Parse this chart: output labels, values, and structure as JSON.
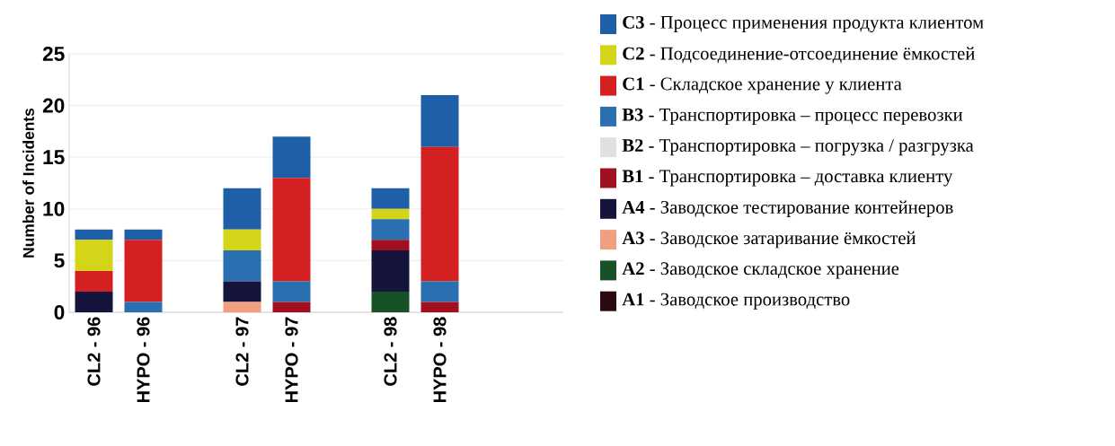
{
  "chart_data": {
    "type": "bar",
    "stacked": true,
    "ylabel": "Number of Incidents",
    "categories": [
      "CL2 - 96",
      "HYPO - 96",
      null,
      "CL2 - 97",
      "HYPO - 97",
      null,
      "CL2 - 98",
      "HYPO - 98",
      null,
      null
    ],
    "ylim": [
      0,
      25
    ],
    "yticks": [
      0,
      5,
      10,
      15,
      20,
      25
    ],
    "grid": "y",
    "legend": "right",
    "series": [
      {
        "name": "**A1** - Заводское производство",
        "color": "#2a0a10",
        "values": [
          0,
          0,
          null,
          0,
          0,
          null,
          0,
          0,
          null,
          null
        ]
      },
      {
        "name": "**A2** - Заводское складское хранение",
        "color": "#185028",
        "values": [
          0,
          0,
          null,
          0,
          0,
          null,
          2,
          0,
          null,
          null
        ]
      },
      {
        "name": "**A3** - Заводское затаривание ёмкостей",
        "color": "#f0a080",
        "values": [
          0,
          0,
          null,
          1,
          0,
          null,
          0,
          0,
          null,
          null
        ]
      },
      {
        "name": "**A4** - Заводское тестирование контейнеров",
        "color": "#14143c",
        "values": [
          2,
          0,
          null,
          2,
          0,
          null,
          4,
          0,
          null,
          null
        ]
      },
      {
        "name": "**B1** - Транспортировка – доставка клиенту",
        "color": "#a01020",
        "values": [
          0,
          0,
          null,
          0,
          1,
          null,
          1,
          1,
          null,
          null
        ]
      },
      {
        "name": "**B2** - Транспортировка – погрузка / разгрузка",
        "color": "#e0e0e0",
        "values": [
          0,
          0,
          null,
          0,
          0,
          null,
          0,
          0,
          null,
          null
        ]
      },
      {
        "name": "**B3** - Транспортировка – процесс перевозки",
        "color": "#2a70b0",
        "values": [
          0,
          1,
          null,
          3,
          2,
          null,
          2,
          2,
          null,
          null
        ]
      },
      {
        "name": "**C1** - Складское хранение у клиента",
        "color": "#d42020",
        "values": [
          2,
          6,
          null,
          0,
          10,
          null,
          0,
          13,
          null,
          null
        ]
      },
      {
        "name": "**C2** - Подсоединение-отсоединение ёмкостей",
        "color": "#d4d418",
        "values": [
          3,
          0,
          null,
          2,
          0,
          null,
          1,
          0,
          null,
          null
        ]
      },
      {
        "name": "**C3** - Процесс применения продукта клиентом",
        "color": "#1f5fa8",
        "values": [
          1,
          1,
          null,
          4,
          4,
          null,
          2,
          5,
          null,
          null
        ]
      }
    ]
  }
}
